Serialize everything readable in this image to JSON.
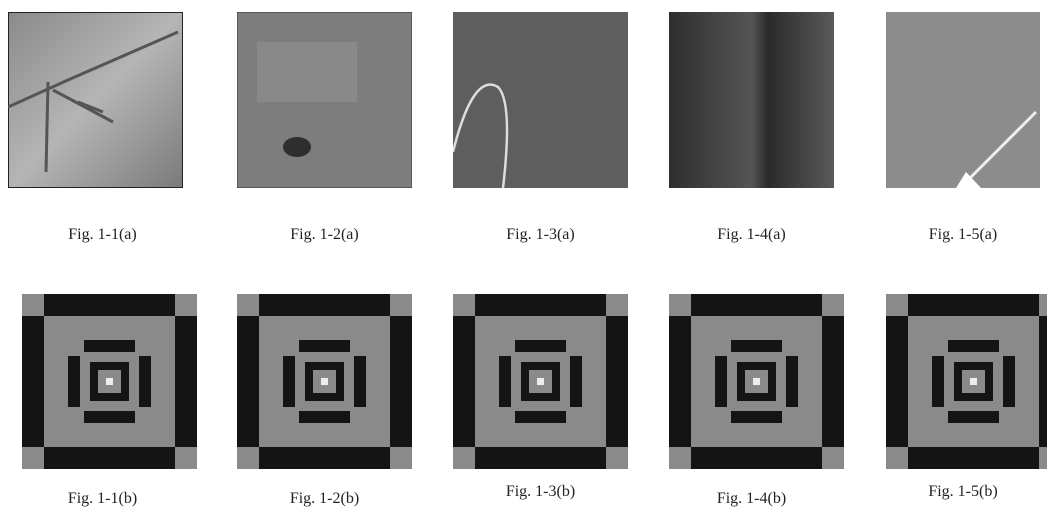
{
  "rows": [
    [
      "Fig. 1-1(a)",
      "Fig. 1-2(a)",
      "Fig. 1-3(a)",
      "Fig. 1-4(a)",
      "Fig. 1-5(a)"
    ],
    [
      "Fig. 1-1(b)",
      "Fig. 1-2(b)",
      "Fig. 1-3(b)",
      "Fig. 1-4(b)",
      "Fig. 1-5(b)"
    ]
  ]
}
